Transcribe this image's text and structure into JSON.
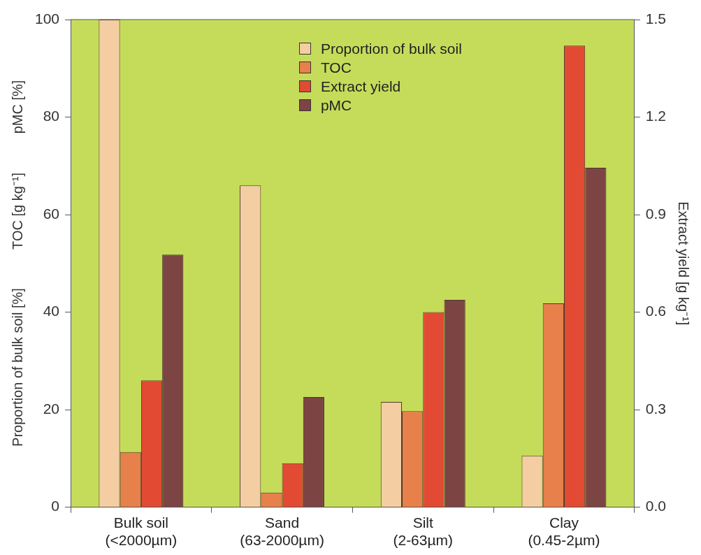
{
  "chart_data": {
    "type": "bar",
    "ylabel": "Proportion of bulk soil [%]          TOC [g kg⁻¹]          pMC [%]",
    "y2label": "Extract yield [g kg⁻¹]",
    "categories": [
      "Bulk soil\n(<2000µm)",
      "Sand\n(63-2000µm)",
      "Silt\n(2-63µm)",
      "Clay\n(0.45-2µm)"
    ],
    "series": [
      {
        "name": "Proportion of bulk soil",
        "color": "#f4cda3",
        "values": [
          100,
          66,
          21.6,
          10.6
        ]
      },
      {
        "name": "TOC",
        "color": "#e8804c",
        "values": [
          11.3,
          3,
          19.7,
          41.8
        ]
      },
      {
        "name": "Extract yield",
        "color": "#e24a34",
        "axis": "y2",
        "values": [
          0.39,
          0.135,
          0.6,
          1.42
        ]
      },
      {
        "name": "pMC",
        "color": "#7d4444",
        "values": [
          51.8,
          22.6,
          42.5,
          69.6
        ]
      }
    ],
    "ylim": [
      0,
      100
    ],
    "yticks": [
      0,
      20,
      40,
      60,
      80,
      100
    ],
    "y2lim": [
      0,
      1.5
    ],
    "y2ticks": [
      {
        "value": 0,
        "label": "0.0"
      },
      {
        "value": 0.3,
        "label": "0.3"
      },
      {
        "value": 0.6,
        "label": "0.6"
      },
      {
        "value": 0.9,
        "label": "0.9"
      },
      {
        "value": 1.2,
        "label": "1.2"
      },
      {
        "value": 1.5,
        "label": "1.5"
      }
    ],
    "grid": false,
    "legend": "top"
  }
}
